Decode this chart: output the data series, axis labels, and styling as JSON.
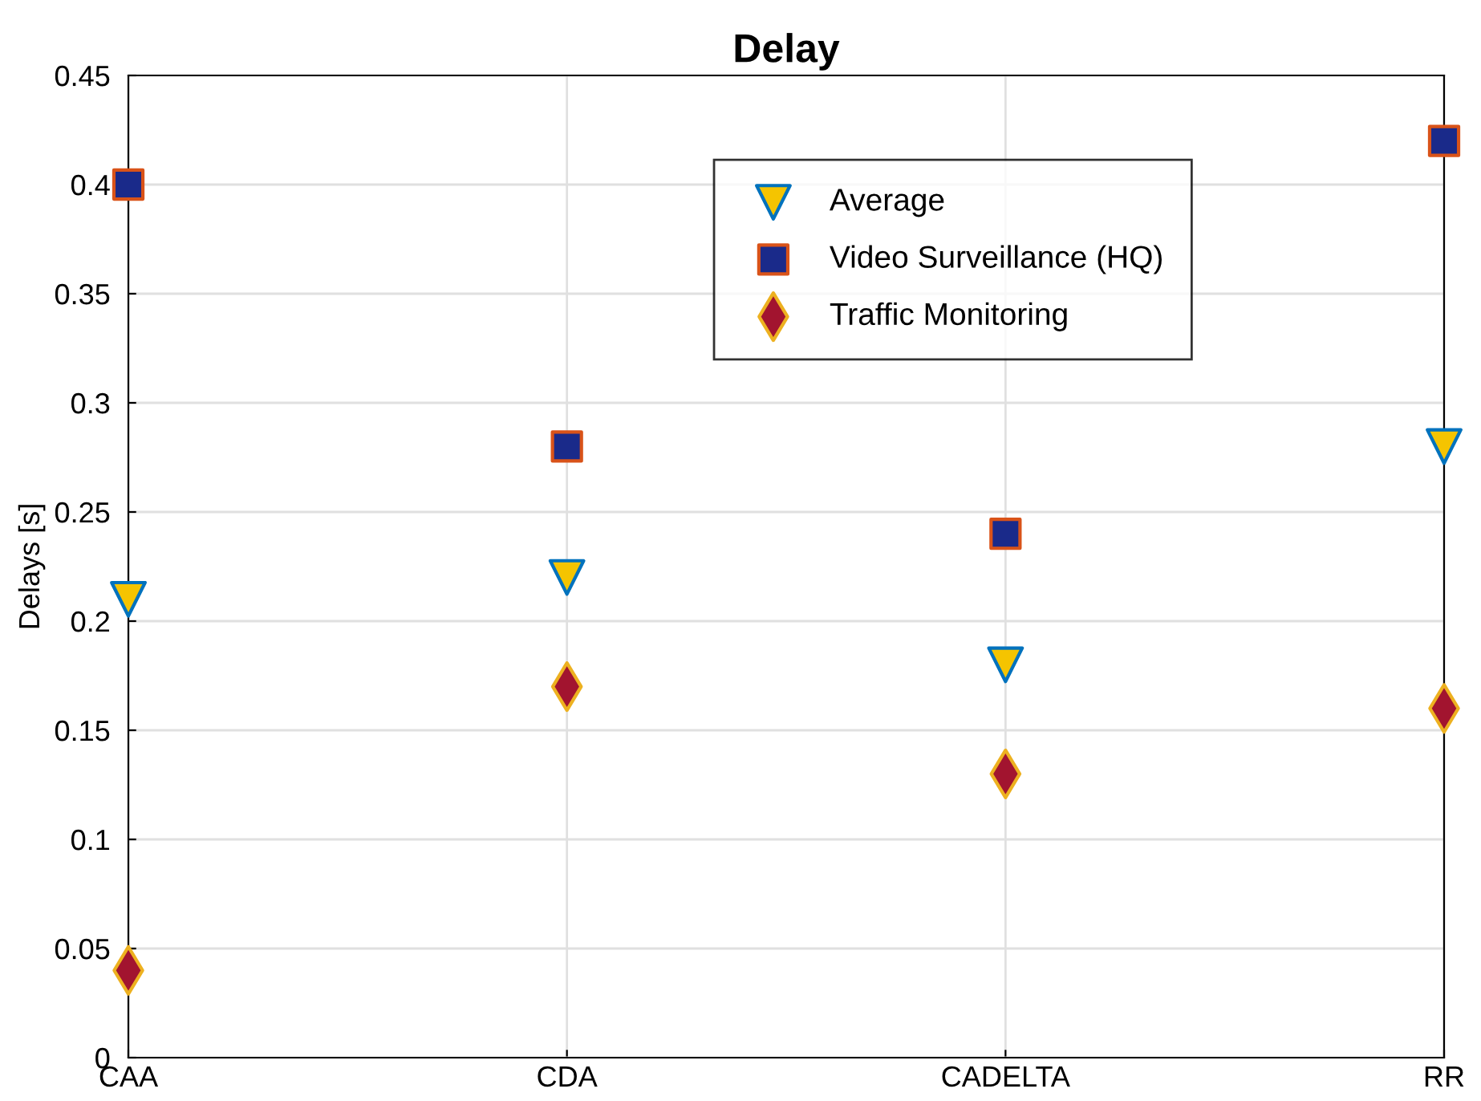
{
  "chart_data": {
    "type": "scatter",
    "title": "Delay",
    "ylabel": "Delays [s]",
    "categories": [
      "CAA",
      "CDA",
      "CADELTA",
      "RR"
    ],
    "series": [
      {
        "name": "Average",
        "color": "#f5c400",
        "marker": "triangle_down",
        "values": [
          0.21,
          0.22,
          0.18,
          0.28
        ]
      },
      {
        "name": "Video Surveillance (HQ)",
        "color": "#1a2a8a",
        "marker": "square",
        "values": [
          0.4,
          0.28,
          0.24,
          0.42
        ]
      },
      {
        "name": "Traffic Monitoring",
        "color": "#a2142f",
        "marker": "diamond",
        "values": [
          0.04,
          0.17,
          0.13,
          0.16
        ]
      }
    ],
    "ylim": [
      0,
      0.45
    ],
    "yticks": [
      0,
      0.05,
      0.1,
      0.15,
      0.2,
      0.25,
      0.3,
      0.35,
      0.4,
      0.45
    ],
    "grid": true,
    "legend": "top right"
  }
}
